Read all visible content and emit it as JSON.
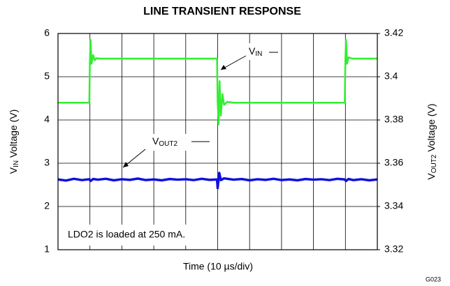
{
  "chart_data": {
    "type": "line",
    "title": "LINE TRANSIENT RESPONSE",
    "x_label": "Time (10 µs/div)",
    "y_label": {
      "main": "V",
      "sub": "IN",
      "rest": " Voltage (V)"
    },
    "y2_label": {
      "main": "V",
      "sub": "OUT2",
      "rest": " Voltage (V)"
    },
    "annotations": [
      {
        "main": "V",
        "sub": "IN"
      },
      {
        "main": "V",
        "sub": "OUT2"
      },
      {
        "text": "LDO2 is loaded at 250 mA."
      }
    ],
    "figure_id": "G023",
    "xlim": [
      0,
      100
    ],
    "ylim": [
      1,
      6
    ],
    "yticks": [
      1,
      2,
      3,
      4,
      5,
      6
    ],
    "y2lim": [
      3.32,
      3.42
    ],
    "y2ticks": [
      {
        "value": 3.32,
        "label": "3.32"
      },
      {
        "value": 3.34,
        "label": "3.34"
      },
      {
        "value": 3.36,
        "label": "3.36"
      },
      {
        "value": 3.38,
        "label": "3.38"
      },
      {
        "value": 3.4,
        "label": "3.4"
      },
      {
        "value": 3.42,
        "label": "3.42"
      }
    ],
    "grid": true,
    "series": [
      {
        "name": "VIN",
        "color": "#33ee33",
        "x": [
          0,
          9.8,
          10,
          10.2,
          10.5,
          11,
          11.5,
          12,
          13,
          20,
          30,
          40,
          49.8,
          50,
          50.3,
          50.6,
          51,
          51.5,
          52,
          53,
          55,
          60,
          70,
          80,
          89.8,
          90,
          90.2,
          90.5,
          91,
          92,
          100
        ],
        "values": [
          4.4,
          4.4,
          5.4,
          5.85,
          5.3,
          5.5,
          5.38,
          5.43,
          5.42,
          5.42,
          5.42,
          5.42,
          5.42,
          4.4,
          3.9,
          4.9,
          4.1,
          4.6,
          4.35,
          4.42,
          4.4,
          4.4,
          4.4,
          4.4,
          4.4,
          5.4,
          5.85,
          5.3,
          5.45,
          5.42,
          5.42
        ]
      },
      {
        "name": "VOUT2",
        "color": "#1010dd",
        "axis": "y2",
        "x": [
          0,
          2.5,
          5,
          7.5,
          9.8,
          10.2,
          11,
          12.5,
          15,
          17.5,
          20,
          22.5,
          25,
          27.5,
          30,
          32.5,
          35,
          37.5,
          40,
          42.5,
          45,
          47.5,
          49.8,
          50,
          50.5,
          51,
          52,
          55,
          57.5,
          60,
          62.5,
          65,
          67.5,
          70,
          72.5,
          75,
          77.5,
          80,
          82.5,
          85,
          87.5,
          89.8,
          90.2,
          91,
          92.5,
          95,
          97.5,
          100
        ],
        "values": [
          3.3525,
          3.352,
          3.3528,
          3.3522,
          3.3526,
          3.3518,
          3.3527,
          3.3524,
          3.3528,
          3.3521,
          3.3526,
          3.3523,
          3.3529,
          3.3522,
          3.3525,
          3.3521,
          3.3527,
          3.3524,
          3.3526,
          3.3522,
          3.3528,
          3.3523,
          3.3525,
          3.3485,
          3.3555,
          3.3522,
          3.353,
          3.3524,
          3.3527,
          3.3521,
          3.3526,
          3.3523,
          3.3528,
          3.3522,
          3.3525,
          3.3521,
          3.3527,
          3.3524,
          3.3526,
          3.3522,
          3.3528,
          3.3525,
          3.3518,
          3.3527,
          3.3522,
          3.3526,
          3.3521,
          3.3525
        ]
      }
    ]
  }
}
